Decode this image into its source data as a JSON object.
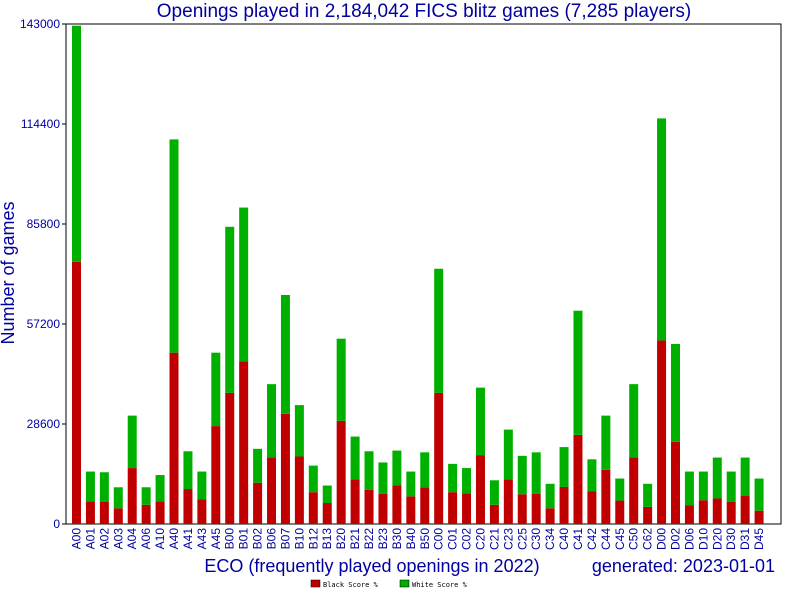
{
  "chart_data": {
    "type": "bar",
    "stacked": true,
    "title": "Openings played in 2,184,042 FICS blitz games (7,285 players)",
    "xlabel": "ECO (frequently played openings in 2022)",
    "ylabel": "Number of games",
    "footnote": "generated: 2023-01-01",
    "ylim": [
      0,
      143000
    ],
    "yticks": [
      "0",
      "28600",
      "57200",
      "85800",
      "114400",
      "143000"
    ],
    "categories": [
      "A00",
      "A01",
      "A02",
      "A03",
      "A04",
      "A06",
      "A10",
      "A40",
      "A41",
      "A43",
      "A45",
      "B00",
      "B01",
      "B02",
      "B06",
      "B07",
      "B10",
      "B12",
      "B13",
      "B20",
      "B21",
      "B22",
      "B23",
      "B30",
      "B40",
      "B50",
      "C00",
      "C01",
      "C02",
      "C20",
      "C21",
      "C23",
      "C25",
      "C30",
      "C34",
      "C40",
      "C41",
      "C42",
      "C44",
      "C45",
      "C50",
      "C62",
      "D00",
      "D02",
      "D06",
      "D10",
      "D20",
      "D30",
      "D31",
      "D45"
    ],
    "series": [
      {
        "name": "Black Score %",
        "color": "#c00000",
        "values": [
          75000,
          6500,
          6300,
          4500,
          16000,
          5500,
          6500,
          49000,
          10000,
          7000,
          28000,
          37500,
          46500,
          11800,
          19000,
          31500,
          19300,
          9100,
          6000,
          29500,
          12800,
          9800,
          8600,
          11000,
          7900,
          10500,
          37500,
          9100,
          8700,
          19700,
          5500,
          12800,
          8500,
          8600,
          4500,
          10600,
          25500,
          9400,
          15500,
          6700,
          19000,
          4900,
          52500,
          23500,
          5300,
          6800,
          7300,
          6300,
          8000,
          3800
        ]
      },
      {
        "name": "White Score %",
        "color": "#00b000",
        "values": [
          67500,
          8500,
          8500,
          6000,
          15000,
          5000,
          7500,
          61000,
          10800,
          8000,
          21000,
          47500,
          44000,
          9700,
          21000,
          34000,
          14700,
          7600,
          5000,
          23500,
          12200,
          11000,
          9000,
          10000,
          7100,
          10000,
          35500,
          8100,
          7300,
          19300,
          7000,
          14200,
          11000,
          11900,
          7000,
          11400,
          35500,
          9100,
          15500,
          6300,
          21000,
          6600,
          63500,
          28000,
          9700,
          8200,
          11700,
          8700,
          11000,
          9200
        ]
      }
    ],
    "legend_position": "bottom-center",
    "grid": false
  }
}
